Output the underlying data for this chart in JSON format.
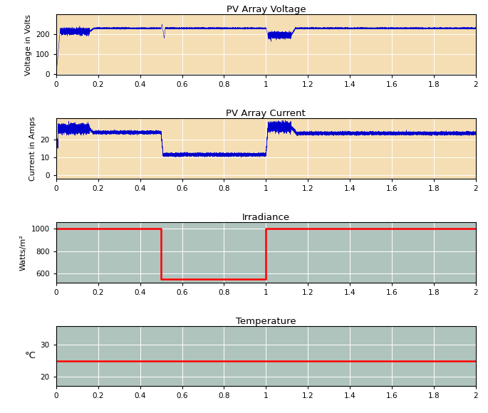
{
  "title1": "PV Array Voltage",
  "title2": "PV Array Current",
  "title3": "Irradiance",
  "title4": "Temperature",
  "ylabel1": "Voltage in Volts",
  "ylabel2": "Current in Amps",
  "ylabel3": "Watts/m²",
  "ylabel4": "°C",
  "xlim": [
    0,
    2
  ],
  "ylim1": [
    -5,
    300
  ],
  "ylim2": [
    -2,
    32
  ],
  "ylim3": [
    520,
    1060
  ],
  "ylim4": [
    17,
    36
  ],
  "yticks1": [
    0,
    100,
    200
  ],
  "yticks2": [
    0,
    10,
    20
  ],
  "yticks3": [
    600,
    800,
    1000
  ],
  "yticks4": [
    20,
    30
  ],
  "xticks": [
    0,
    0.2,
    0.4,
    0.6,
    0.8,
    1.0,
    1.2,
    1.4,
    1.6,
    1.8,
    2.0
  ],
  "bg_color1": "#f5deb3",
  "bg_color2": "#f5deb3",
  "bg_color3": "#b0c4be",
  "bg_color4": "#b0c4be",
  "line_color_blue": "#0000cd",
  "line_color_red": "#ff0000",
  "temperature_const": 25,
  "irradiance_high": 1000,
  "irradiance_low": 550,
  "noise_seed": 42,
  "fig_bg": "#ffffff"
}
